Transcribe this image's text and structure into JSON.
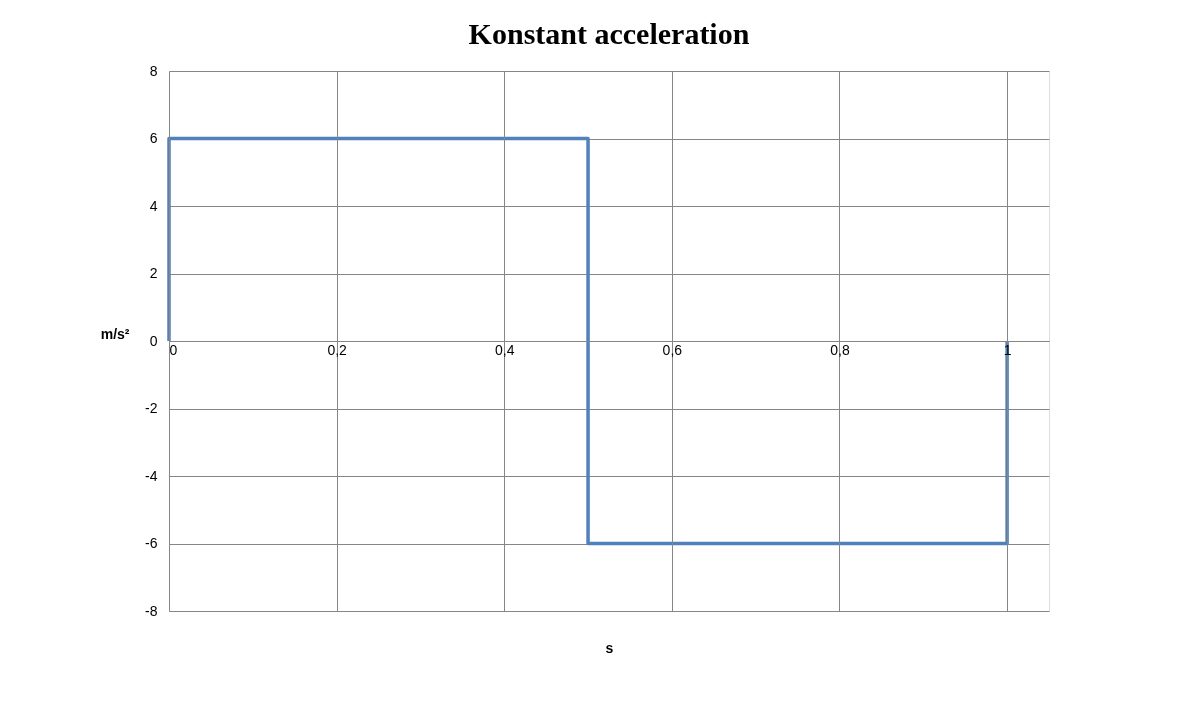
{
  "chart_data": {
    "type": "line",
    "title": "Konstant acceleration",
    "xlabel": "s",
    "ylabel": "m/s²",
    "x": [
      0,
      0,
      0.5,
      0.5,
      1,
      1
    ],
    "series": [
      {
        "color": "#4f81bd",
        "values": [
          0,
          6,
          6,
          -6,
          -6,
          0
        ]
      }
    ],
    "xlim": [
      0,
      1.05
    ],
    "xticks": [
      0,
      {
        "value": 0.2,
        "label": "0,2"
      },
      {
        "value": 0.4,
        "label": "0,4"
      },
      {
        "value": 0.6,
        "label": "0,6"
      },
      {
        "value": 0.8,
        "label": "0,8"
      },
      1
    ],
    "ylim": [
      -8,
      8
    ],
    "yticks": [
      -8,
      -6,
      -4,
      -2,
      0,
      2,
      4,
      6,
      8
    ],
    "grid": true,
    "marker": "none",
    "line_style": "solid"
  }
}
